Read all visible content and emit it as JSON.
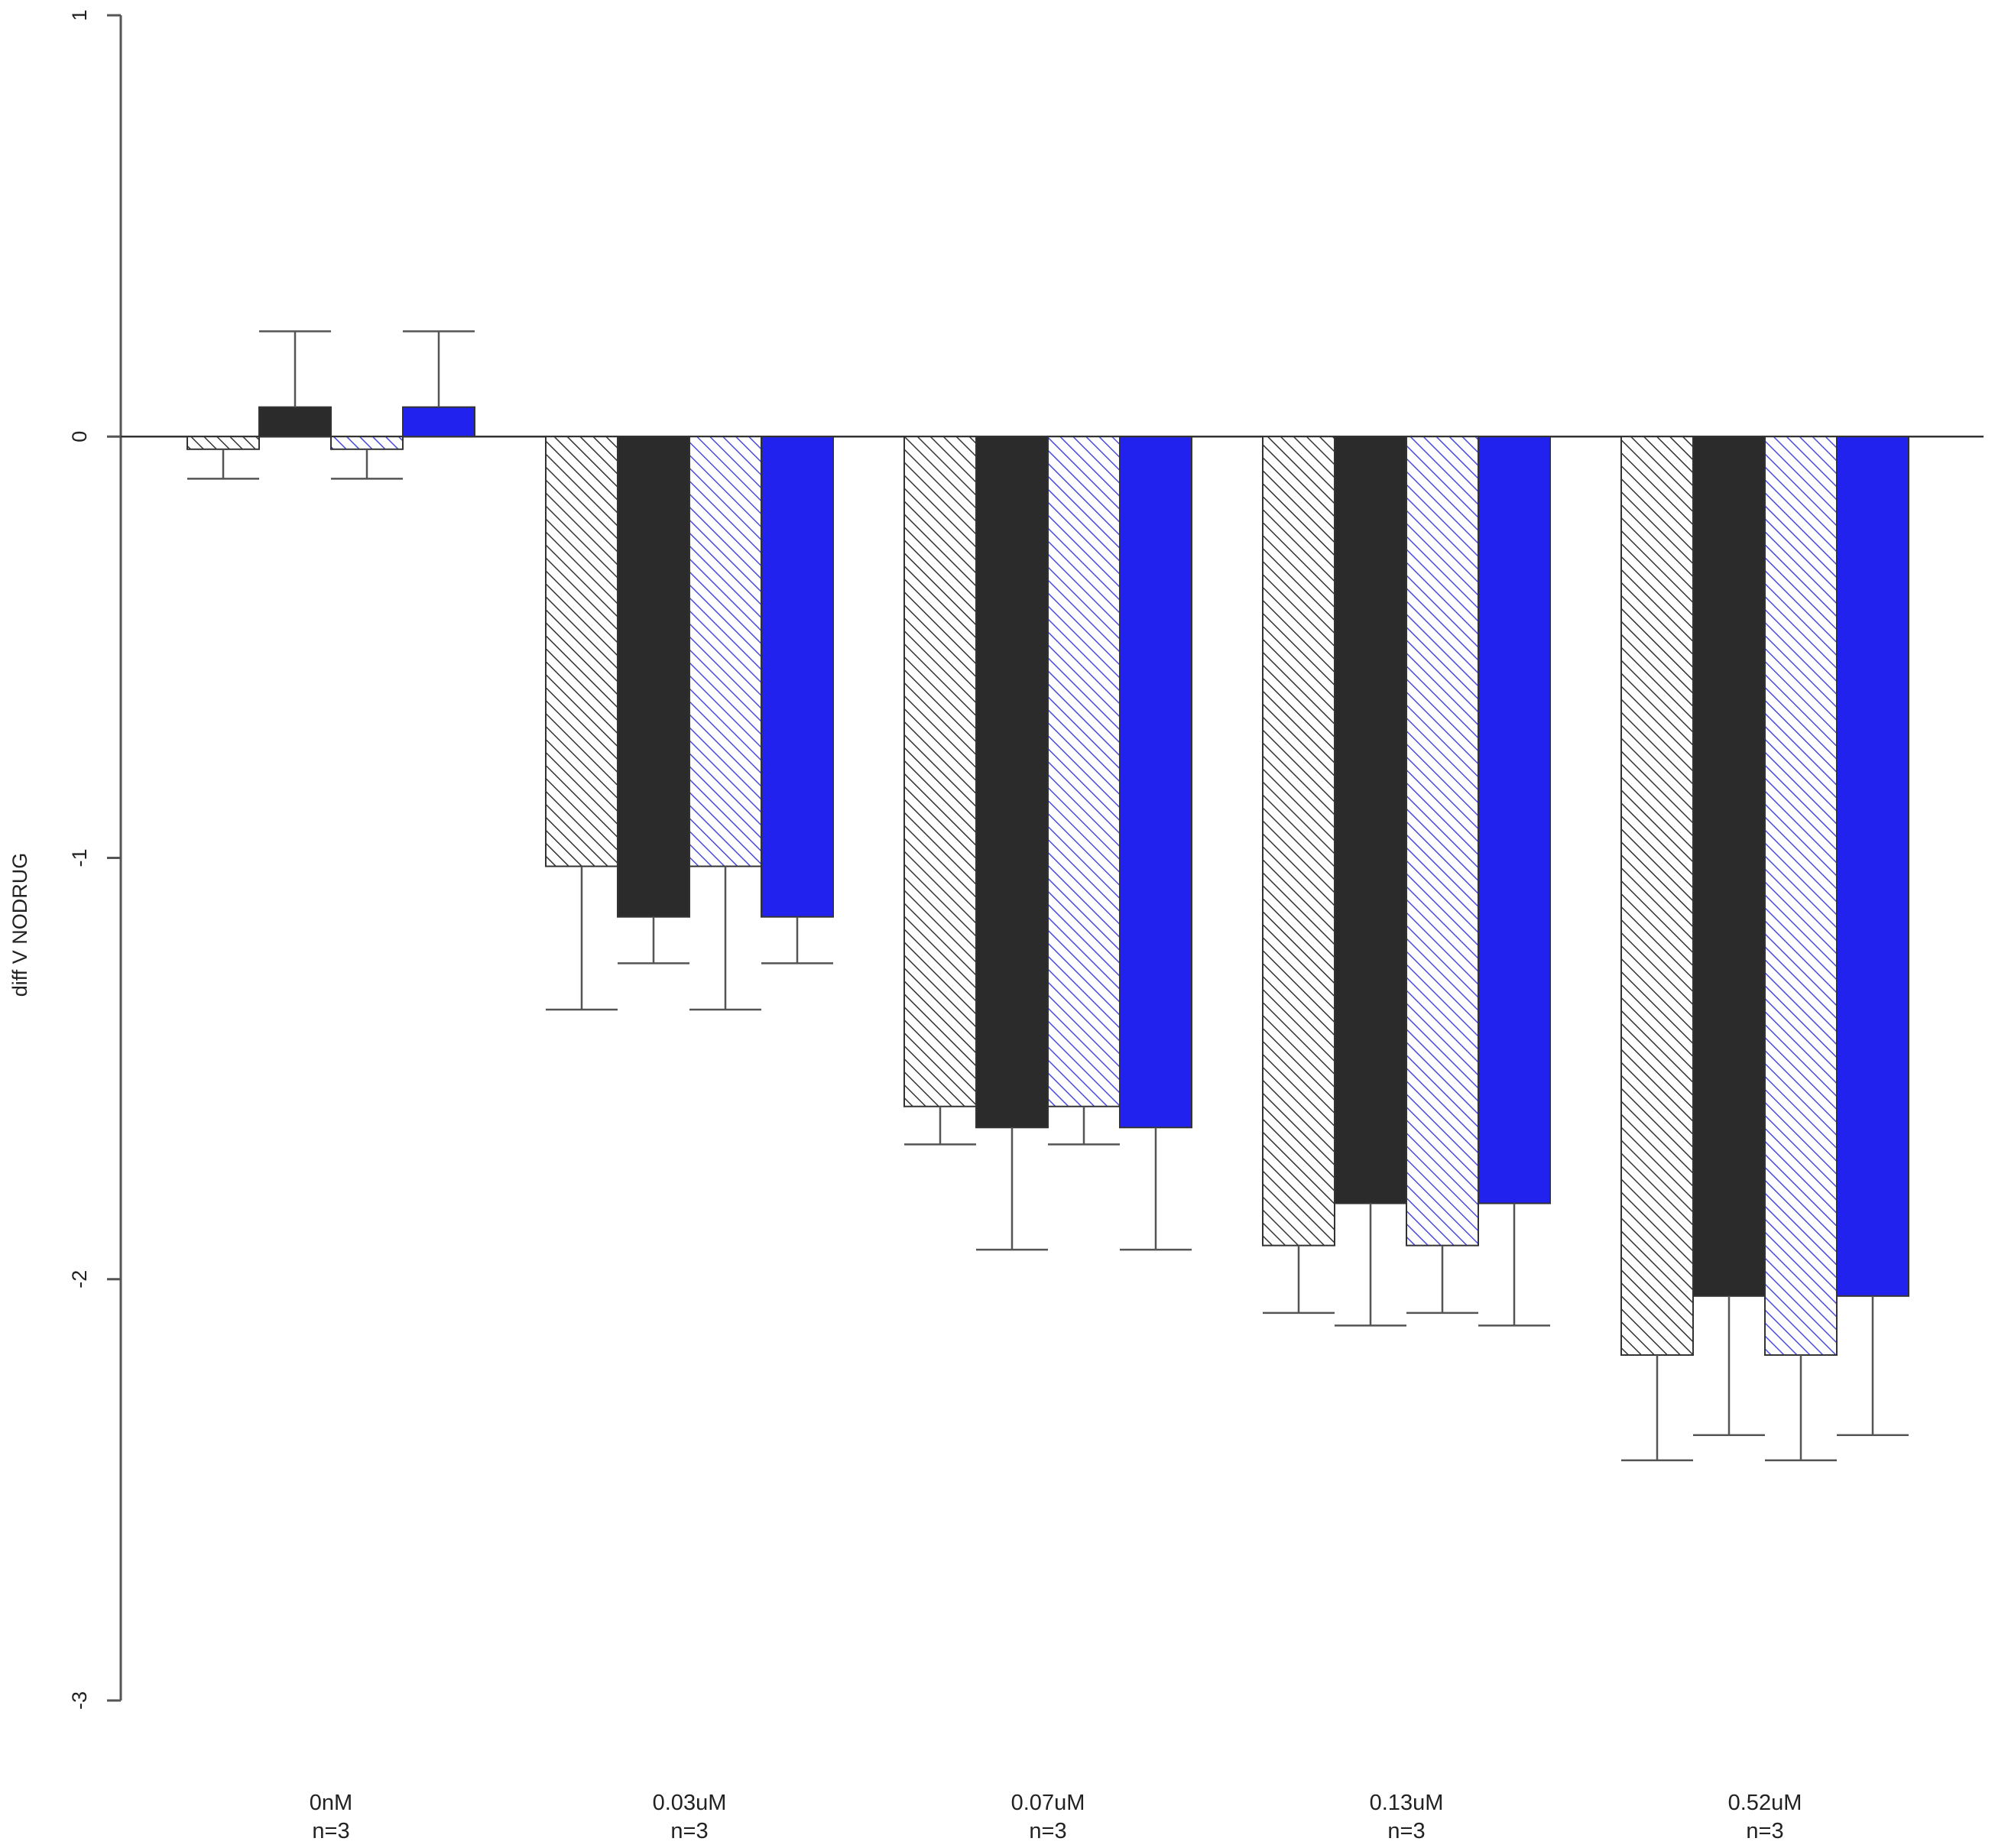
{
  "chart_data": {
    "type": "bar",
    "title": "",
    "xlabel": "",
    "ylabel": "diff V NODRUG",
    "ylim": [
      -3,
      1
    ],
    "yticks": [
      1,
      0,
      -1,
      -2,
      -3
    ],
    "grid": false,
    "legend": "none",
    "categories": [
      {
        "dose": "0nM",
        "n": "n=3"
      },
      {
        "dose": "0.03uM",
        "n": "n=3"
      },
      {
        "dose": "0.07uM",
        "n": "n=3"
      },
      {
        "dose": "0.13uM",
        "n": "n=3"
      },
      {
        "dose": "0.52uM",
        "n": "n=3"
      }
    ],
    "series": [
      {
        "style": "hatch",
        "color": "#333333",
        "values": [
          -0.03,
          -1.02,
          -1.59,
          -1.92,
          -2.18
        ],
        "error": [
          0.07,
          0.34,
          0.09,
          0.16,
          0.25
        ]
      },
      {
        "style": "solid",
        "color": "#2b2b2b",
        "values": [
          0.07,
          -1.14,
          -1.64,
          -1.82,
          -2.04
        ],
        "error": [
          0.18,
          0.11,
          0.29,
          0.29,
          0.33
        ]
      },
      {
        "style": "hatch",
        "color": "#4a4ae0",
        "values": [
          -0.03,
          -1.02,
          -1.59,
          -1.92,
          -2.18
        ],
        "error": [
          0.07,
          0.34,
          0.09,
          0.16,
          0.25
        ]
      },
      {
        "style": "solid",
        "color": "#2222ee",
        "values": [
          0.07,
          -1.14,
          -1.64,
          -1.82,
          -2.04
        ],
        "error": [
          0.18,
          0.11,
          0.29,
          0.29,
          0.33
        ]
      }
    ]
  }
}
